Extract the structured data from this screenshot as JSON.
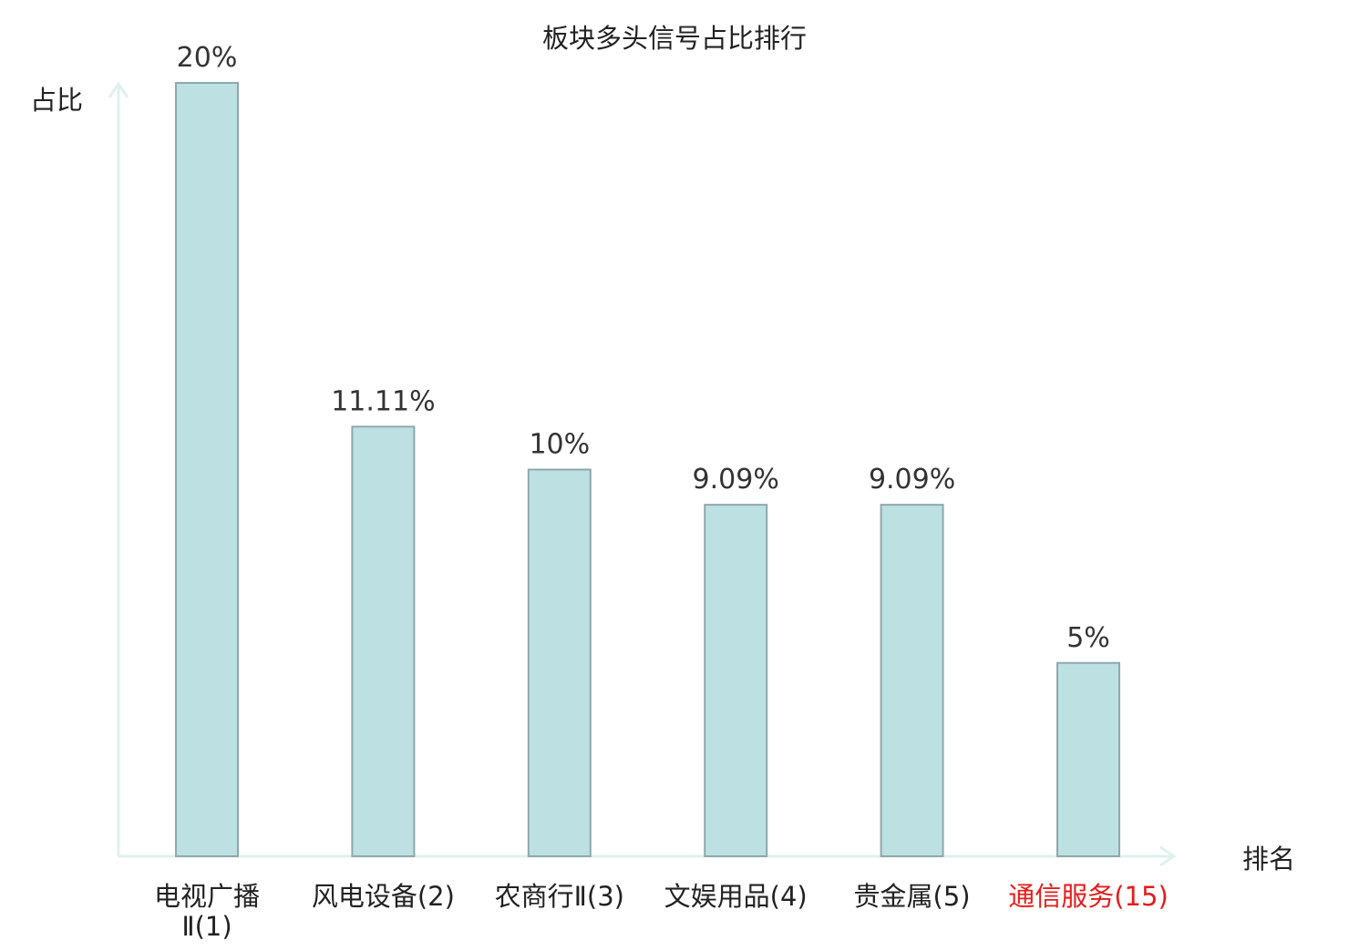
{
  "chart_data": {
    "type": "bar",
    "title": "板块多头信号占比排行",
    "ylabel": "占比",
    "xlabel": "排名",
    "categories": [
      [
        "电视广播",
        "Ⅱ(1)"
      ],
      [
        "风电设备(2)"
      ],
      [
        "农商行Ⅱ(3)"
      ],
      [
        "文娱用品(4)"
      ],
      [
        "贵金属(5)"
      ],
      [
        "通信服务(15)"
      ]
    ],
    "values": [
      20,
      11.11,
      10,
      9.09,
      9.09,
      5
    ],
    "value_labels": [
      "20%",
      "11.11%",
      "10%",
      "9.09%",
      "9.09%",
      "5%"
    ],
    "highlight_index": 5,
    "ylim": [
      0,
      20
    ],
    "grid": false,
    "colors": {
      "bar_fill": "#bde0e3",
      "bar_stroke": "#8fa8ab",
      "axis": "#dff1ee",
      "highlight_text": "#e41c1c",
      "text": "#222222"
    }
  }
}
